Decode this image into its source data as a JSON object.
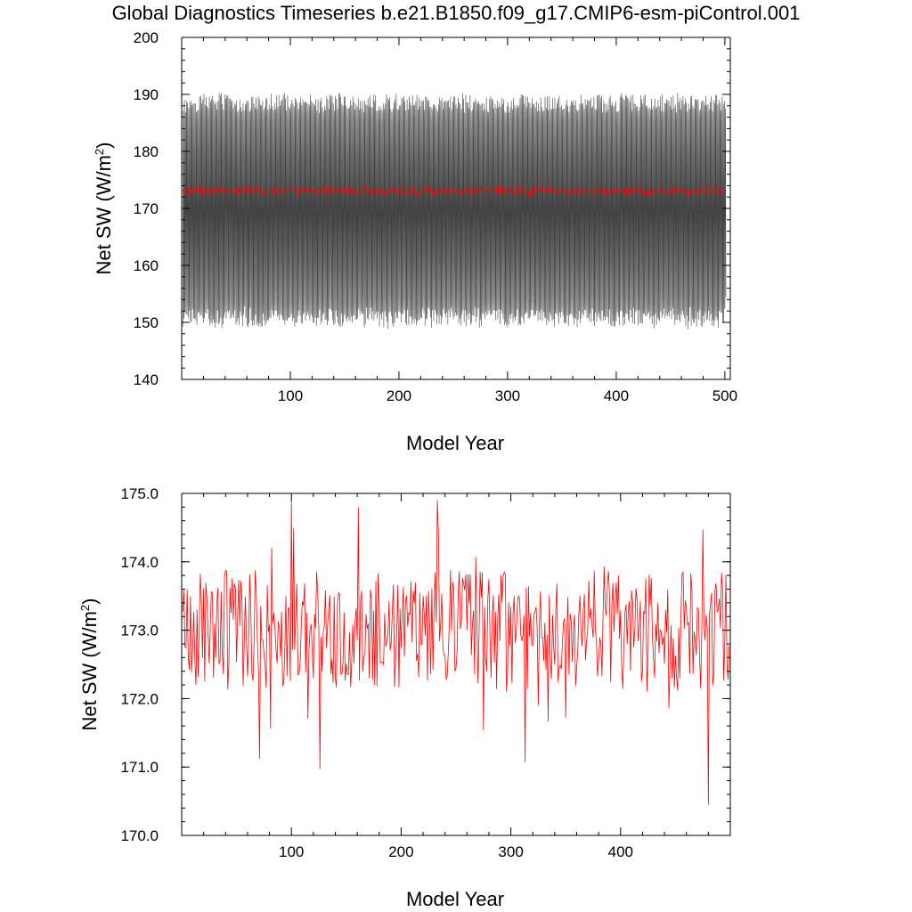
{
  "title": "Global Diagnostics Timeseries b.e21.B1850.f09_g17.CMIP6-esm-piControl.001",
  "colors": {
    "monthly": "#000000",
    "annual": "#ff0000",
    "axes": "#000000"
  },
  "chart_data": [
    {
      "type": "line",
      "xlabel": "Model Year",
      "ylabel": "Net SW (W/m2)",
      "ylabel_parts": {
        "pre": "Net SW (W/m",
        "sup": "2",
        "post": ")"
      },
      "xlim": [
        0,
        505
      ],
      "ylim": [
        140,
        200
      ],
      "xticks": [
        100,
        200,
        300,
        400,
        500
      ],
      "yticks": [
        140,
        150,
        160,
        170,
        180,
        190,
        200
      ],
      "xtick_labels": [
        "100",
        "200",
        "300",
        "400",
        "500"
      ],
      "ytick_labels": [
        "140",
        "150",
        "160",
        "170",
        "180",
        "190",
        "200"
      ],
      "series": [
        {
          "kind": "monthly",
          "color": "#000000",
          "seasonal_cycle": {
            "min_approx": 149.5,
            "max_approx": 190,
            "period_years": 1
          },
          "years": [
            1,
            500
          ]
        },
        {
          "kind": "annual",
          "color": "#ff0000",
          "mean_approx": 173.2,
          "years": [
            1,
            500
          ]
        }
      ]
    },
    {
      "type": "line",
      "xlabel": "Model Year",
      "ylabel": "Net SW (W/m2)",
      "ylabel_parts": {
        "pre": "Net SW (W/m",
        "sup": "2",
        "post": ")"
      },
      "xlim": [
        0,
        500
      ],
      "ylim": [
        170,
        175
      ],
      "xticks": [
        100,
        200,
        300,
        400
      ],
      "yticks": [
        170,
        171,
        172,
        173,
        174,
        175
      ],
      "xtick_labels": [
        "100",
        "200",
        "300",
        "400"
      ],
      "ytick_labels": [
        "170.0",
        "171.0",
        "172.0",
        "173.0",
        "174.0",
        "175.0"
      ],
      "series": [
        {
          "kind": "annual",
          "color": "#ff0000",
          "mean_approx": 173.0,
          "years": [
            1,
            499
          ],
          "notable": [
            {
              "x": 100,
              "y": 174.88
            },
            {
              "x": 161,
              "y": 174.8
            },
            {
              "x": 233,
              "y": 174.9
            },
            {
              "x": 71,
              "y": 171.12
            },
            {
              "x": 126,
              "y": 170.97
            },
            {
              "x": 313,
              "y": 171.07
            },
            {
              "x": 480,
              "y": 170.45
            }
          ]
        }
      ]
    }
  ]
}
